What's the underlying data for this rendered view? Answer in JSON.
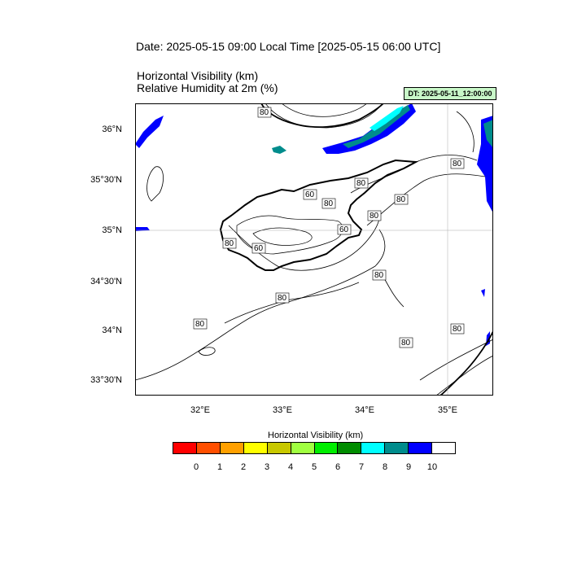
{
  "header": {
    "date_title": "Date: 2025-05-15  09:00 Local Time [2025-05-15  06:00 UTC]",
    "title_line1": "Horizontal Visibility   (km)",
    "title_line2": "Relative Humidity at 2m   (%)",
    "dt_badge": "DT: 2025-05-11_12:00:00"
  },
  "map": {
    "lat_labels": [
      "36°N",
      "35°30'N",
      "35°N",
      "34°30'N",
      "34°N",
      "33°30'N"
    ],
    "lon_labels": [
      "32°E",
      "33°E",
      "34°E",
      "35°E"
    ],
    "contour_labels": [
      "80",
      "80",
      "80",
      "60",
      "80",
      "80",
      "80",
      "60",
      "80",
      "60",
      "80",
      "80",
      "80",
      "80",
      "80"
    ]
  },
  "legend": {
    "title": "Horizontal Visibility  (km)",
    "colors": [
      "#ff0000",
      "#ff4f00",
      "#ffa000",
      "#ffff00",
      "#c8c800",
      "#a0ff40",
      "#00ee00",
      "#008c00",
      "#00ffff",
      "#008c8c",
      "#0000ff",
      "#ffffff"
    ],
    "tick_labels": [
      "0",
      "1",
      "2",
      "3",
      "4",
      "5",
      "6",
      "7",
      "8",
      "9",
      "10"
    ]
  }
}
